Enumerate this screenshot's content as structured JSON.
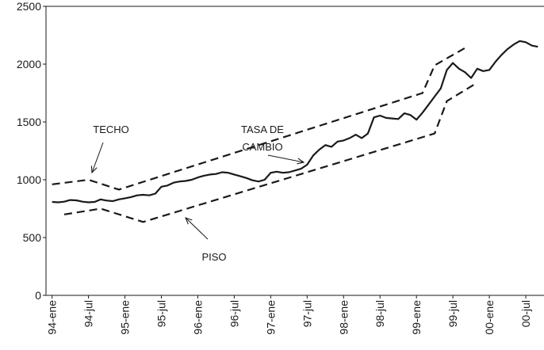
{
  "chart_data": {
    "type": "line",
    "xlim": [
      -1,
      81
    ],
    "xticks": [
      {
        "value": 0,
        "label": "94-ene"
      },
      {
        "value": 6,
        "label": "94-jul"
      },
      {
        "value": 12,
        "label": "95-ene"
      },
      {
        "value": 18,
        "label": "95-jul"
      },
      {
        "value": 24,
        "label": "96-ene"
      },
      {
        "value": 30,
        "label": "96-jul"
      },
      {
        "value": 36,
        "label": "97-ene"
      },
      {
        "value": 42,
        "label": "97-jul"
      },
      {
        "value": 48,
        "label": "98-ene"
      },
      {
        "value": 54,
        "label": "98-jul"
      },
      {
        "value": 60,
        "label": "99-ene"
      },
      {
        "value": 66,
        "label": "99-jul"
      },
      {
        "value": 72,
        "label": "00-ene"
      },
      {
        "value": 78,
        "label": "00-jul"
      }
    ],
    "ylim": [
      0,
      2500
    ],
    "yticks": [
      0,
      500,
      1000,
      1500,
      2000,
      2500
    ],
    "series": [
      {
        "name": "TECHO",
        "color": "#1a1a1a",
        "dashed": true,
        "x": [
          0,
          6,
          11,
          61,
          63,
          68
        ],
        "values": [
          960,
          1000,
          915,
          1750,
          1990,
          2140
        ]
      },
      {
        "name": "TASA DE CAMBIO",
        "color": "#1a1a1a",
        "dashed": false,
        "x": [
          0,
          1,
          2,
          3,
          4,
          5,
          6,
          7,
          8,
          9,
          10,
          11,
          12,
          13,
          14,
          15,
          16,
          17,
          18,
          19,
          20,
          21,
          22,
          23,
          24,
          25,
          26,
          27,
          28,
          29,
          30,
          31,
          32,
          33,
          34,
          35,
          36,
          37,
          38,
          39,
          40,
          41,
          42,
          43,
          44,
          45,
          46,
          47,
          48,
          49,
          50,
          51,
          52,
          53,
          54,
          55,
          56,
          57,
          58,
          59,
          60,
          61,
          62,
          63,
          64,
          65,
          66,
          67,
          68,
          69,
          70,
          71,
          72,
          73,
          74,
          75,
          76,
          77,
          78,
          79,
          80
        ],
        "values": [
          808,
          805,
          810,
          825,
          822,
          810,
          805,
          808,
          830,
          820,
          815,
          830,
          840,
          850,
          865,
          870,
          865,
          880,
          940,
          950,
          975,
          985,
          990,
          1000,
          1020,
          1035,
          1045,
          1050,
          1065,
          1060,
          1045,
          1030,
          1015,
          995,
          985,
          1000,
          1060,
          1070,
          1060,
          1065,
          1080,
          1095,
          1130,
          1210,
          1260,
          1300,
          1285,
          1330,
          1340,
          1360,
          1390,
          1360,
          1400,
          1540,
          1555,
          1535,
          1530,
          1525,
          1575,
          1560,
          1520,
          1580,
          1650,
          1720,
          1790,
          1950,
          2010,
          1960,
          1930,
          1880,
          1960,
          1940,
          1950,
          2020,
          2080,
          2130,
          2170,
          2200,
          2190,
          2160,
          2150
        ]
      },
      {
        "name": "PISO",
        "color": "#1a1a1a",
        "dashed": true,
        "x": [
          2,
          8,
          15,
          63,
          65,
          70
        ],
        "values": [
          700,
          750,
          635,
          1400,
          1680,
          1840
        ]
      }
    ]
  }
}
